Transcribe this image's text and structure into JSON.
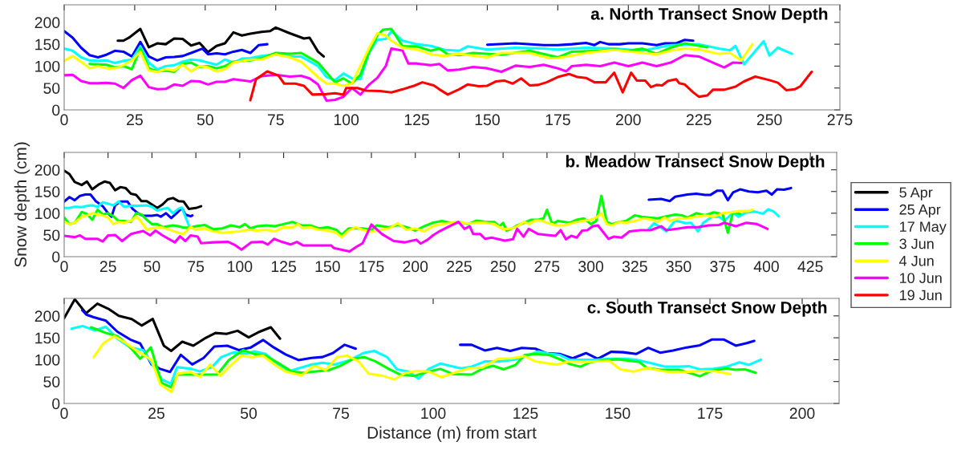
{
  "chart_data": [
    {
      "type": "line",
      "title": "a. North Transect Snow Depth",
      "xlim": [
        0,
        275
      ],
      "xticks": [
        0,
        25,
        50,
        75,
        100,
        125,
        150,
        175,
        200,
        225,
        250,
        275
      ],
      "ylim": [
        0,
        240
      ],
      "yticks": [
        0,
        50,
        100,
        150,
        200
      ],
      "grid": false,
      "legend": "right",
      "marker": "none",
      "line_style": "solid",
      "series": [
        {
          "name": "5 Apr",
          "color": "#000000",
          "x": [
            19,
            21,
            23,
            27,
            30,
            33,
            36,
            39,
            42,
            45,
            48,
            51,
            54,
            57,
            60,
            63,
            66,
            70,
            73,
            75,
            80,
            85,
            87,
            90,
            92
          ],
          "values": [
            158,
            158,
            165,
            185,
            143,
            152,
            150,
            163,
            162,
            147,
            153,
            132,
            146,
            152,
            177,
            170,
            174,
            178,
            180,
            188,
            175,
            163,
            165,
            133,
            122
          ]
        },
        {
          "name": "25 Apr",
          "color": "#0000ff",
          "x": [
            0,
            3,
            6,
            9,
            12,
            15,
            18,
            21,
            24,
            27,
            30,
            33,
            36,
            39,
            42,
            45,
            49,
            51,
            54,
            57,
            60,
            63,
            66,
            69,
            72,
            110,
            150,
            160,
            170,
            175,
            180,
            185,
            188,
            190,
            193,
            197,
            200,
            205,
            210,
            213,
            217,
            220,
            223
          ],
          "values": [
            180,
            165,
            142,
            125,
            120,
            126,
            135,
            133,
            122,
            155,
            122,
            113,
            120,
            121,
            123,
            130,
            140,
            127,
            129,
            127,
            133,
            137,
            130,
            148,
            150,
            null,
            149,
            152,
            148,
            148,
            150,
            153,
            148,
            155,
            150,
            150,
            152,
            152,
            148,
            152,
            152,
            160,
            158
          ]
        },
        {
          "name": "17 May",
          "color": "#00ffff",
          "x": [
            0,
            3,
            6,
            9,
            12,
            15,
            18,
            21,
            24,
            27,
            30,
            33,
            36,
            39,
            42,
            45,
            48,
            51,
            54,
            57,
            60,
            63,
            66,
            70,
            75,
            80,
            84,
            90,
            93,
            96,
            99,
            102,
            105,
            108,
            111,
            114,
            116,
            120,
            125,
            130,
            135,
            140,
            143,
            150,
            160,
            170,
            175,
            185,
            195,
            205,
            215,
            225,
            232,
            236,
            238,
            241,
            248,
            250,
            253,
            258
          ],
          "values": [
            140,
            135,
            120,
            113,
            112,
            113,
            107,
            112,
            115,
            145,
            108,
            92,
            100,
            102,
            110,
            115,
            113,
            108,
            103,
            115,
            108,
            117,
            118,
            123,
            127,
            122,
            122,
            100,
            75,
            68,
            83,
            72,
            70,
            130,
            160,
            162,
            180,
            158,
            150,
            146,
            137,
            135,
            145,
            138,
            142,
            140,
            138,
            142,
            140,
            135,
            148,
            150,
            140,
            136,
            146,
            104,
            157,
            124,
            142,
            128
          ]
        },
        {
          "name": "3 Jun",
          "color": "#00ff00",
          "x": [
            9,
            15,
            18,
            21,
            24,
            27,
            30,
            33,
            36,
            39,
            42,
            45,
            48,
            51,
            54,
            57,
            60,
            66,
            70,
            75,
            80,
            84,
            90,
            93,
            96,
            99,
            102,
            105,
            108,
            111,
            113,
            116,
            120,
            125,
            130,
            133,
            136,
            140,
            145,
            155,
            165,
            175,
            180,
            190,
            195,
            200,
            205,
            210,
            215,
            220,
            228
          ],
          "values": [
            105,
            103,
            97,
            100,
            93,
            140,
            95,
            88,
            90,
            87,
            105,
            108,
            98,
            100,
            95,
            100,
            110,
            113,
            118,
            130,
            128,
            130,
            108,
            85,
            63,
            72,
            60,
            80,
            130,
            170,
            183,
            185,
            145,
            145,
            135,
            140,
            127,
            125,
            130,
            126,
            135,
            120,
            133,
            135,
            138,
            135,
            140,
            128,
            142,
            152,
            143
          ]
        },
        {
          "name": "4 Jun",
          "color": "#ffff00",
          "x": [
            0,
            3,
            6,
            9,
            12,
            15,
            18,
            21,
            24,
            27,
            30,
            33,
            36,
            39,
            42,
            45,
            48,
            51,
            54,
            57,
            60,
            66,
            70,
            75,
            80,
            84,
            90,
            93,
            96,
            99,
            102,
            105,
            108,
            111,
            114,
            116,
            120,
            125,
            130,
            135,
            140,
            150,
            155,
            165,
            172,
            175,
            185,
            195,
            205,
            210,
            215,
            220,
            225,
            232,
            236,
            240,
            244
          ],
          "values": [
            112,
            123,
            110,
            95,
            100,
            95,
            95,
            102,
            113,
            133,
            90,
            87,
            93,
            90,
            103,
            88,
            100,
            97,
            88,
            93,
            108,
            115,
            115,
            127,
            120,
            110,
            75,
            60,
            60,
            55,
            60,
            100,
            140,
            175,
            170,
            158,
            142,
            138,
            127,
            123,
            128,
            120,
            130,
            130,
            118,
            118,
            130,
            137,
            130,
            127,
            135,
            140,
            138,
            128,
            130,
            113,
            150
          ]
        },
        {
          "name": "10 Jun",
          "color": "#ff00ff",
          "x": [
            0,
            3,
            6,
            9,
            12,
            15,
            18,
            21,
            24,
            27,
            30,
            33,
            36,
            39,
            42,
            45,
            48,
            51,
            54,
            57,
            60,
            66,
            70,
            75,
            80,
            84,
            87,
            90,
            93,
            96,
            99,
            102,
            105,
            108,
            111,
            114,
            116,
            120,
            122,
            125,
            130,
            133,
            136,
            140,
            145,
            150,
            155,
            160,
            165,
            170,
            175,
            178,
            180,
            185,
            190,
            195,
            200,
            205,
            210,
            215,
            220,
            225,
            230,
            234,
            237,
            240
          ],
          "values": [
            79,
            80,
            66,
            61,
            61,
            62,
            60,
            50,
            68,
            78,
            52,
            47,
            48,
            58,
            55,
            66,
            65,
            58,
            64,
            64,
            70,
            65,
            77,
            80,
            76,
            78,
            72,
            58,
            21,
            23,
            30,
            50,
            35,
            57,
            73,
            100,
            140,
            135,
            106,
            106,
            102,
            105,
            90,
            92,
            98,
            95,
            87,
            101,
            98,
            103,
            95,
            88,
            100,
            103,
            100,
            108,
            100,
            108,
            100,
            108,
            125,
            122,
            108,
            97,
            108,
            107
          ]
        },
        {
          "name": "19 Jun",
          "color": "#ff0000",
          "x": [
            66,
            68,
            72,
            76,
            78,
            82,
            85,
            88,
            93,
            96,
            99,
            100,
            104,
            107,
            112,
            116,
            120,
            124,
            127,
            131,
            133,
            136,
            140,
            143,
            147,
            150,
            153,
            156,
            159,
            162,
            165,
            168,
            171,
            175,
            179,
            182,
            185,
            188,
            192,
            195,
            198,
            201,
            203,
            206,
            208,
            210,
            212,
            214,
            217,
            218,
            220,
            223,
            225,
            228,
            230,
            234,
            238,
            241,
            245,
            250,
            253,
            256,
            259,
            261,
            265
          ],
          "values": [
            22,
            70,
            88,
            78,
            60,
            60,
            55,
            35,
            36,
            38,
            35,
            50,
            50,
            44,
            43,
            40,
            47,
            55,
            63,
            56,
            47,
            35,
            47,
            58,
            54,
            55,
            65,
            67,
            60,
            72,
            56,
            57,
            63,
            75,
            82,
            75,
            73,
            63,
            63,
            85,
            40,
            85,
            67,
            67,
            52,
            57,
            56,
            66,
            70,
            61,
            58,
            40,
            30,
            33,
            46,
            46,
            53,
            65,
            76,
            68,
            62,
            45,
            47,
            54,
            87
          ]
        }
      ]
    },
    {
      "type": "line",
      "title": "b. Meadow Transect Snow Depth",
      "ylabel": "Snow depth (cm)",
      "xlim": [
        0,
        440
      ],
      "xticks": [
        0,
        25,
        50,
        75,
        100,
        125,
        150,
        175,
        200,
        225,
        250,
        275,
        300,
        325,
        350,
        375,
        400,
        425
      ],
      "ylim": [
        0,
        240
      ],
      "yticks": [
        0,
        50,
        100,
        150,
        200
      ],
      "grid": false,
      "marker": "none",
      "line_style": "solid",
      "series": [
        {
          "color": "#000000",
          "x": [
            0,
            3,
            6,
            10,
            13,
            16,
            20,
            23,
            26,
            29,
            32,
            35,
            38,
            41,
            44,
            47,
            50,
            53,
            56,
            59,
            62,
            65,
            68,
            71,
            75,
            78
          ],
          "values": [
            198,
            190,
            172,
            165,
            173,
            155,
            167,
            173,
            170,
            153,
            160,
            158,
            145,
            142,
            128,
            128,
            120,
            112,
            120,
            132,
            135,
            128,
            127,
            110,
            112,
            116
          ]
        },
        {
          "color": "#0000ff",
          "x": [
            0,
            3,
            6,
            9,
            12,
            15,
            18,
            22,
            25,
            27,
            29,
            32,
            36,
            39,
            42,
            45,
            50,
            53,
            55,
            58,
            61,
            64,
            67,
            69,
            72,
            73,
            200,
            333,
            340,
            345,
            348,
            355,
            360,
            365,
            368,
            372,
            375,
            378,
            381,
            385,
            390,
            395,
            400,
            403,
            406,
            410,
            414
          ],
          "values": [
            127,
            137,
            130,
            140,
            143,
            143,
            128,
            116,
            100,
            92,
            118,
            127,
            127,
            110,
            100,
            94,
            94,
            96,
            92,
            100,
            89,
            100,
            112,
            97,
            93,
            95,
            null,
            131,
            133,
            128,
            138,
            143,
            145,
            142,
            142,
            152,
            152,
            130,
            148,
            155,
            150,
            148,
            152,
            143,
            155,
            154,
            158
          ]
        },
        {
          "color": "#00ffff",
          "x": [
            0,
            3,
            6,
            10,
            13,
            16,
            19,
            22,
            25,
            28,
            31,
            34,
            38,
            42,
            47,
            50,
            53,
            56,
            59,
            62,
            65,
            67,
            71,
            200,
            333,
            336,
            343,
            348,
            354,
            357,
            361,
            364,
            369,
            373,
            376,
            381,
            384,
            388,
            393,
            398,
            401,
            404,
            407
          ],
          "values": [
            112,
            112,
            115,
            114,
            117,
            118,
            115,
            125,
            122,
            118,
            127,
            115,
            117,
            117,
            118,
            115,
            106,
            110,
            112,
            100,
            110,
            113,
            72,
            null,
            64,
            77,
            58,
            83,
            77,
            78,
            58,
            78,
            92,
            92,
            83,
            101,
            92,
            101,
            104,
            99,
            109,
            104,
            93
          ]
        },
        {
          "color": "#00ff00",
          "x": [
            0,
            3,
            6,
            10,
            13,
            16,
            19,
            22,
            25,
            28,
            31,
            34,
            38,
            41,
            44,
            47,
            50,
            53,
            56,
            59,
            62,
            65,
            68,
            72,
            75,
            80,
            85,
            90,
            95,
            100,
            103,
            106,
            110,
            115,
            120,
            125,
            130,
            135,
            140,
            145,
            150,
            155,
            158,
            162,
            170,
            175,
            178,
            185,
            190,
            195,
            200,
            205,
            210,
            215,
            220,
            225,
            230,
            235,
            240,
            245,
            248,
            250,
            252,
            255,
            258,
            262,
            266,
            270,
            273,
            275,
            278,
            281,
            285,
            288,
            292,
            296,
            300,
            303,
            306,
            309,
            312,
            316,
            320,
            325,
            329,
            333,
            338,
            342,
            348,
            352,
            355,
            360,
            365,
            370,
            375,
            378,
            381,
            385
          ],
          "values": [
            90,
            75,
            78,
            103,
            98,
            85,
            108,
            97,
            100,
            93,
            82,
            82,
            80,
            100,
            97,
            85,
            75,
            75,
            68,
            70,
            72,
            70,
            67,
            67,
            70,
            73,
            63,
            65,
            72,
            68,
            75,
            65,
            70,
            72,
            70,
            75,
            80,
            72,
            72,
            65,
            68,
            62,
            50,
            65,
            65,
            62,
            72,
            68,
            73,
            68,
            60,
            70,
            78,
            82,
            78,
            80,
            75,
            83,
            80,
            80,
            70,
            78,
            60,
            65,
            72,
            78,
            85,
            85,
            88,
            108,
            75,
            82,
            80,
            78,
            85,
            88,
            75,
            82,
            140,
            80,
            75,
            80,
            82,
            95,
            92,
            90,
            88,
            92,
            97,
            95,
            90,
            100,
            95,
            102,
            98,
            55,
            103,
            98
          ]
        },
        {
          "color": "#ffff00",
          "x": [
            0,
            3,
            6,
            10,
            13,
            16,
            19,
            22,
            25,
            28,
            31,
            34,
            38,
            41,
            44,
            47,
            50,
            55,
            60,
            65,
            68,
            72,
            75,
            80,
            85,
            90,
            100,
            105,
            110,
            115,
            120,
            125,
            130,
            133,
            136,
            140,
            145,
            150,
            155,
            158,
            162,
            166,
            170,
            175,
            180,
            185,
            190,
            195,
            200,
            205,
            210,
            215,
            220,
            225,
            230,
            235,
            240,
            245,
            250,
            255,
            258,
            262,
            265,
            268,
            272,
            275,
            280,
            285,
            290,
            295,
            300,
            303,
            306,
            309,
            312,
            316,
            320,
            325,
            330,
            335,
            338,
            342,
            345,
            350,
            355,
            360,
            365,
            370,
            375,
            380,
            385,
            390,
            392
          ],
          "values": [
            80,
            75,
            78,
            92,
            95,
            100,
            97,
            95,
            90,
            75,
            80,
            78,
            82,
            93,
            80,
            62,
            65,
            68,
            62,
            55,
            52,
            68,
            62,
            65,
            58,
            55,
            58,
            62,
            60,
            62,
            58,
            68,
            67,
            75,
            65,
            68,
            62,
            60,
            55,
            45,
            60,
            68,
            62,
            57,
            62,
            65,
            77,
            62,
            65,
            58,
            70,
            75,
            78,
            80,
            76,
            78,
            78,
            75,
            63,
            65,
            70,
            80,
            75,
            83,
            83,
            78,
            72,
            72,
            78,
            82,
            85,
            90,
            100,
            75,
            72,
            80,
            78,
            82,
            88,
            85,
            80,
            90,
            82,
            88,
            88,
            92,
            95,
            92,
            100,
            102,
            105,
            105,
            108
          ]
        },
        {
          "color": "#ff00ff",
          "x": [
            0,
            6,
            9,
            12,
            19,
            22,
            25,
            29,
            33,
            38,
            45,
            49,
            52,
            56,
            63,
            66,
            69,
            72,
            76,
            78,
            85,
            93.5,
            97.6,
            101,
            106.5,
            113,
            116,
            119.5,
            124,
            129,
            132.5,
            136,
            142,
            152,
            153.6,
            162.5,
            166.6,
            170,
            175,
            181,
            187.7,
            194,
            200.6,
            203,
            207,
            210,
            214,
            218,
            224.6,
            228,
            231,
            233,
            237,
            239.7,
            243.5,
            251,
            255.6,
            258,
            261.6,
            264.6,
            270,
            275,
            279.8,
            282.8,
            285.8,
            288.8,
            292,
            295,
            298,
            301,
            304,
            310,
            313,
            317.5,
            322,
            328,
            334,
            340,
            343,
            349,
            355,
            361,
            367,
            373,
            376,
            382.5,
            388.5,
            394.6,
            400.6
          ],
          "values": [
            48,
            45,
            49,
            41,
            41,
            35,
            49,
            50,
            36,
            52,
            59,
            49,
            60,
            49,
            33,
            47,
            36,
            49,
            46,
            31,
            33,
            34,
            26,
            16,
            33,
            34,
            28,
            41,
            34,
            28,
            34,
            26,
            26,
            26,
            20,
            12,
            23,
            31,
            74,
            52,
            36,
            33,
            39,
            30,
            39,
            49,
            59,
            67,
            80,
            64,
            70,
            52,
            52,
            41,
            44,
            37,
            40,
            64,
            46,
            64,
            52,
            50,
            48,
            61,
            40,
            48,
            44,
            60,
            61,
            70,
            72,
            41,
            46,
            44,
            58,
            61,
            61,
            70,
            61,
            64,
            68,
            68,
            72,
            73,
            78,
            70,
            78,
            75,
            64
          ]
        }
      ]
    },
    {
      "type": "line",
      "title": "c. South Transect Snow Depth",
      "xlabel": "Distance (m) from start",
      "xlim": [
        0,
        210
      ],
      "xticks": [
        0,
        25,
        50,
        75,
        100,
        125,
        150,
        175,
        200
      ],
      "ylim": [
        0,
        240
      ],
      "yticks": [
        0,
        50,
        100,
        150,
        200
      ],
      "grid": false,
      "marker": "none",
      "line_style": "solid",
      "series": [
        {
          "color": "#000000",
          "x": [
            0,
            2.9,
            5.9,
            9,
            12,
            14.8,
            18.3,
            21,
            24,
            27,
            29,
            32,
            35,
            38,
            41,
            44,
            47,
            50,
            53,
            56,
            58.5
          ],
          "values": [
            195,
            238,
            206,
            228,
            216,
            200,
            193,
            178,
            193,
            132,
            120,
            141,
            132,
            148,
            161,
            159,
            166,
            151,
            164,
            174,
            148
          ]
        },
        {
          "color": "#0000ff",
          "x": [
            4.9,
            6,
            8,
            11.3,
            14.4,
            17.9,
            20.6,
            23.7,
            26,
            28.7,
            31.6,
            34.7,
            37.8,
            40.7,
            44.2,
            47.3,
            50.6,
            53.9,
            56.8,
            60,
            63.5,
            67,
            70,
            72.8,
            76,
            79,
            90,
            107.3,
            110.4,
            114,
            117.3,
            120.9,
            124,
            127.7,
            130.6,
            134.2,
            137.8,
            141.4,
            144.6,
            148.2,
            151.4,
            155,
            158.3,
            161.5,
            165,
            168.7,
            172.3,
            175.5,
            178.8,
            182,
            185,
            187
          ],
          "values": [
            213,
            203,
            197,
            189,
            164,
            146,
            137,
            89,
            79,
            72,
            111,
            89,
            104,
            130,
            132,
            122,
            128,
            145,
            128,
            112,
            99,
            104,
            106,
            115,
            134,
            125,
            null,
            134,
            134,
            121,
            127,
            120,
            127,
            125,
            115,
            113,
            103,
            115,
            102,
            118,
            117,
            113,
            127,
            116,
            121,
            128,
            133,
            146,
            146,
            132,
            138,
            143
          ]
        },
        {
          "color": "#00ffff",
          "x": [
            2,
            5,
            8.2,
            11.3,
            14.4,
            17.9,
            21.4,
            23.7,
            26.4,
            28.9,
            30.6,
            34.5,
            36.8,
            40,
            42.6,
            46,
            49.2,
            51.5,
            54.6,
            57.7,
            60.8,
            63,
            67,
            70,
            73.2,
            77.5,
            81,
            84,
            87.5,
            90.2,
            93.3,
            96,
            98.8,
            101.9,
            104,
            107.5,
            110.4,
            114,
            118,
            121.9,
            124.8,
            128.4,
            131.3,
            134.2,
            137,
            140.6,
            144.2,
            147.8,
            152.2,
            155,
            158.6,
            162.9,
            166.5,
            169.4,
            172.3,
            175.9,
            179.5,
            183,
            185.6,
            188.8
          ],
          "values": [
            171,
            177,
            167,
            175,
            148,
            128,
            122,
            92,
            55,
            45,
            83,
            79,
            73,
            83,
            106,
            117,
            113,
            119,
            113,
            91,
            73,
            79,
            89,
            93,
            89,
            99,
            115,
            120,
            106,
            78,
            73,
            57,
            79,
            91,
            87,
            80,
            84,
            96,
            96,
            100,
            107,
            119,
            114,
            111,
            100,
            100,
            100,
            102,
            102,
            100,
            93,
            84,
            84,
            85,
            78,
            79,
            84,
            94,
            88,
            100
          ]
        },
        {
          "color": "#00ff00",
          "x": [
            7.3,
            11.3,
            14.4,
            17.5,
            20.6,
            23.5,
            26.4,
            29,
            30.8,
            34.5,
            36.8,
            39.7,
            41.5,
            44.6,
            48.5,
            51.5,
            54.6,
            58.1,
            61.6,
            64.7,
            67.8,
            71.7,
            74.8,
            78.3,
            81.3,
            84.4,
            87.9,
            91,
            94.9,
            98.8,
            101.9,
            105.4,
            110.4,
            113.3,
            116.2,
            119.1,
            122.3,
            124.8,
            127.7,
            131.3,
            134.9,
            137,
            139.9,
            142.8,
            146.4,
            150,
            153.6,
            155.8,
            157.9,
            161.5,
            166.5,
            169.4,
            172.3,
            175.2,
            179.5,
            181.7,
            184.5,
            187.4
          ],
          "values": [
            174,
            161,
            154,
            132,
            102,
            128,
            47,
            37,
            66,
            66,
            66,
            66,
            66,
            99,
            122,
            113,
            109,
            92,
            73,
            70,
            73,
            76,
            86,
            102,
            106,
            96,
            79,
            66,
            63,
            73,
            79,
            67,
            66,
            79,
            86,
            78,
            88,
            111,
            113,
            111,
            99,
            90,
            84,
            95,
            99,
            101,
            97,
            95,
            81,
            77,
            77,
            70,
            62,
            74,
            80,
            77,
            78,
            70
          ]
        },
        {
          "color": "#ffff00",
          "x": [
            8,
            10.7,
            13.6,
            16.7,
            19.4,
            23.7,
            26,
            29.1,
            30.8,
            34.1,
            36.8,
            39.6,
            42.3,
            45.4,
            48.1,
            50.8,
            53.9,
            57,
            60,
            64.3,
            67.8,
            70.9,
            74,
            76.7,
            79.8,
            82.5,
            86.4,
            89.5,
            92.6,
            95.7,
            98.8,
            102.2,
            106.1,
            109.7,
            113.3,
            117.6,
            121.2,
            124.8,
            127.7,
            131.3,
            133.5,
            137,
            140.6,
            143.5,
            147.8,
            150.7,
            154.3,
            157.9,
            161.5,
            164.4,
            168,
            172.3,
            175.9,
            178.1,
            180.6
          ],
          "values": [
            106,
            138,
            154,
            138,
            122,
            99,
            44,
            26,
            68,
            72,
            61,
            89,
            63,
            89,
            109,
            106,
            109,
            89,
            73,
            64,
            86,
            76,
            106,
            109,
            96,
            68,
            63,
            55,
            70,
            74,
            73,
            60,
            71,
            80,
            82,
            102,
            103,
            108,
            96,
            91,
            89,
            96,
            95,
            96,
            97,
            78,
            73,
            81,
            75,
            71,
            72,
            74,
            74,
            71,
            67
          ]
        }
      ]
    }
  ]
}
